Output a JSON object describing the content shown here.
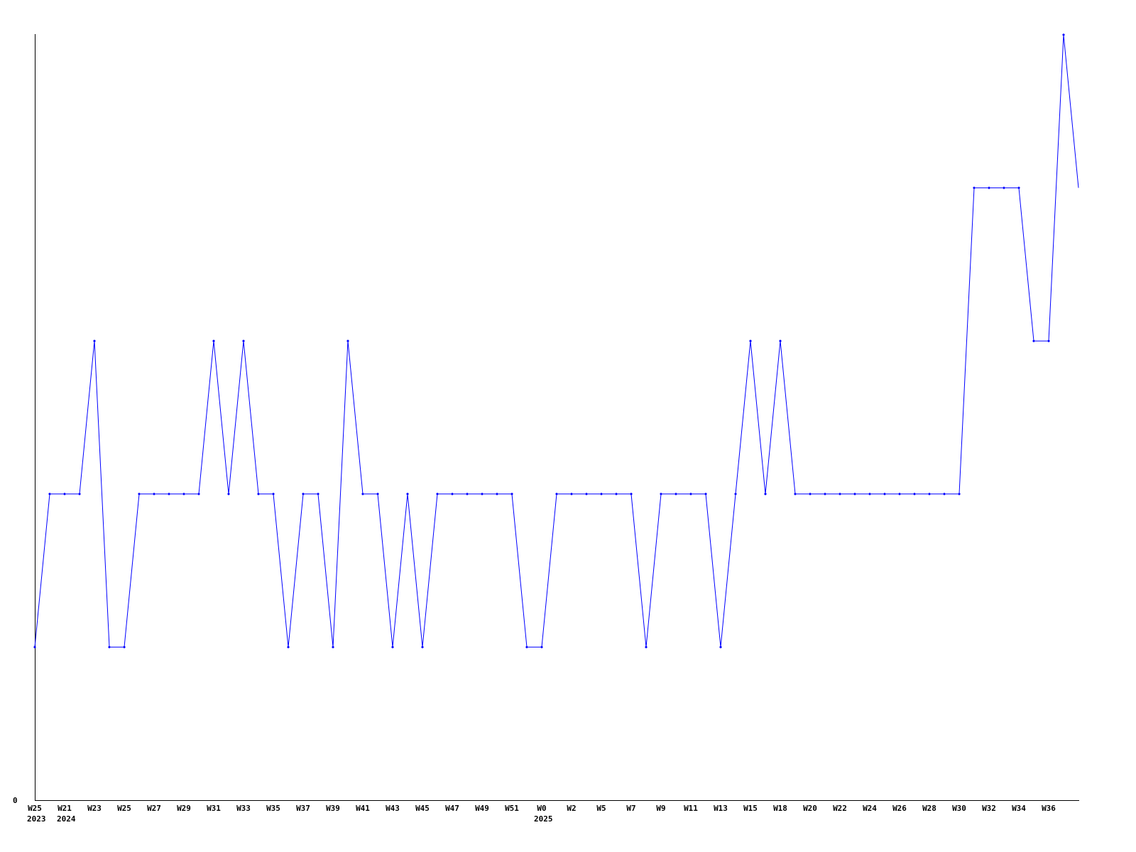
{
  "chart_data": {
    "type": "line",
    "title": "",
    "xlabel": "",
    "ylabel": "",
    "ylim": [
      0,
      5
    ],
    "y_tick_labels": [
      "0"
    ],
    "grid": false,
    "legend": "none",
    "line_color": "#0000ff",
    "axis_color": "#000000",
    "x_tick_labels": [
      "W25",
      "W21",
      "W23",
      "W25",
      "W27",
      "W29",
      "W31",
      "W33",
      "W35",
      "W37",
      "W39",
      "W41",
      "W43",
      "W45",
      "W47",
      "W49",
      "W51",
      "W0",
      "W2",
      "W5",
      "W7",
      "W9",
      "W11",
      "W13",
      "W15",
      "W18",
      "W20",
      "W22",
      "W24",
      "W26",
      "W28",
      "W30",
      "W32",
      "W34",
      "W36"
    ],
    "year_labels": [
      {
        "label": "2023",
        "at_tick": 0
      },
      {
        "label": "2024",
        "at_tick": 1
      },
      {
        "label": "2025",
        "at_tick": 17
      }
    ],
    "values": [
      1,
      2,
      2,
      2,
      3,
      1,
      1,
      2,
      2,
      2,
      2,
      2,
      3,
      2,
      3,
      2,
      2,
      1,
      2,
      2,
      1,
      3,
      2,
      2,
      1,
      2,
      1,
      2,
      2,
      2,
      2,
      2,
      2,
      1,
      1,
      2,
      2,
      2,
      2,
      2,
      2,
      1,
      2,
      2,
      2,
      2,
      1,
      2,
      3,
      2,
      3,
      2,
      2,
      2,
      2,
      2,
      2,
      2,
      2,
      2,
      2,
      2,
      2,
      4,
      4,
      4,
      4,
      3,
      3,
      5,
      4
    ]
  }
}
